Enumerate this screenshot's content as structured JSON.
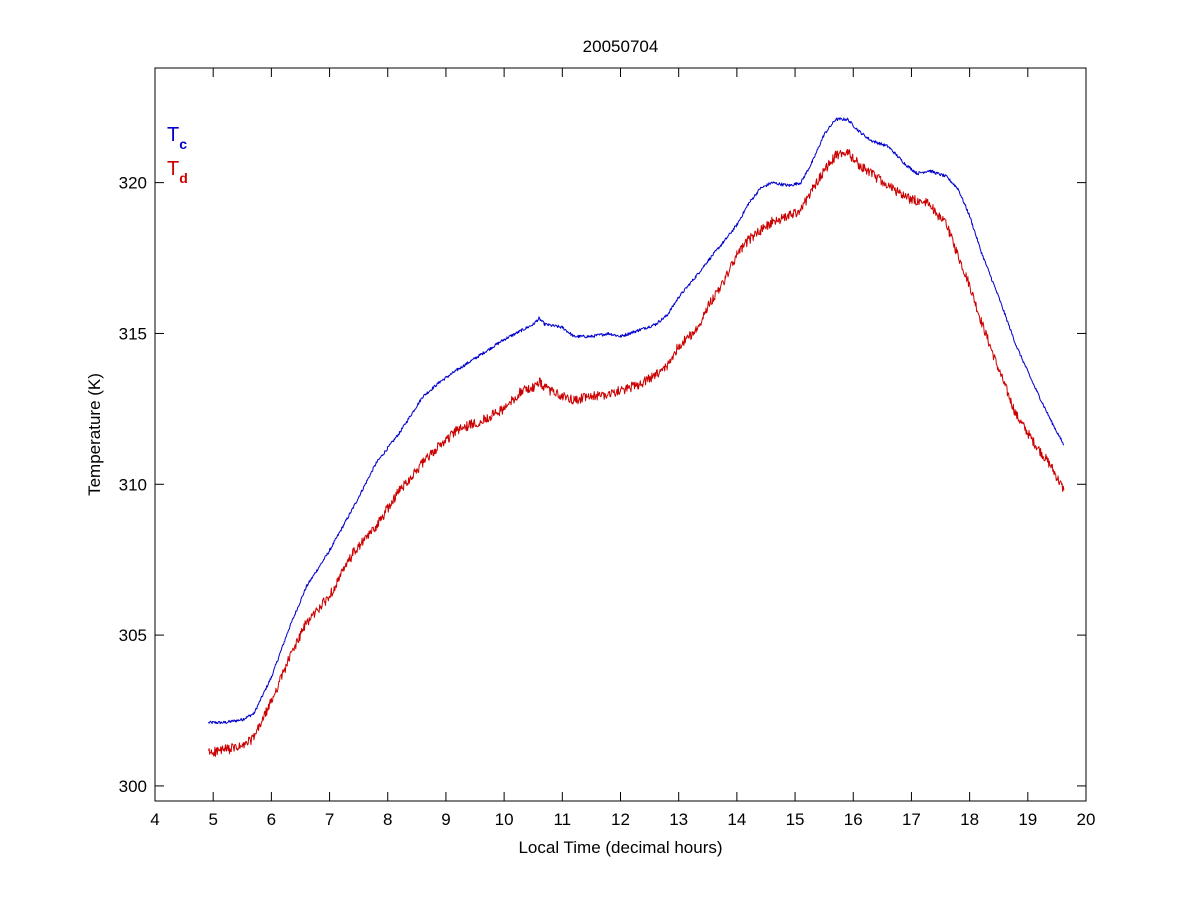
{
  "chart_data": {
    "type": "line",
    "title": "20050704",
    "xlabel": "Local Time (decimal hours)",
    "ylabel": "Temperature (K)",
    "xlim": [
      4,
      20
    ],
    "ylim": [
      299.5,
      323.8
    ],
    "xticks": [
      4,
      5,
      6,
      7,
      8,
      9,
      10,
      11,
      12,
      13,
      14,
      15,
      16,
      17,
      18,
      19,
      20
    ],
    "yticks": [
      300,
      305,
      310,
      315,
      320
    ],
    "grid": false,
    "legend": {
      "placement": "top-left",
      "entries": [
        {
          "base": "T",
          "sub": "c",
          "color": "#0000cc"
        },
        {
          "base": "T",
          "sub": "d",
          "color": "#cc0000"
        }
      ]
    },
    "series": [
      {
        "legend_index": 0,
        "color": "#0000cc",
        "noise": 0.05,
        "x": [
          4.92,
          5.2,
          5.5,
          5.7,
          6.0,
          6.3,
          6.6,
          7.0,
          7.4,
          7.8,
          8.2,
          8.6,
          8.9,
          9.2,
          9.6,
          10.0,
          10.3,
          10.5,
          10.6,
          10.7,
          11.0,
          11.2,
          11.5,
          11.8,
          12.0,
          12.3,
          12.6,
          12.8,
          13.0,
          13.3,
          13.5,
          13.8,
          14.0,
          14.2,
          14.4,
          14.6,
          14.9,
          15.1,
          15.3,
          15.5,
          15.7,
          15.9,
          16.1,
          16.3,
          16.6,
          16.9,
          17.1,
          17.3,
          17.6,
          17.8,
          18.0,
          18.2,
          18.5,
          18.8,
          19.1,
          19.4,
          19.62
        ],
        "y": [
          302.1,
          302.1,
          302.2,
          302.4,
          303.6,
          305.2,
          306.6,
          307.8,
          309.2,
          310.7,
          311.7,
          312.9,
          313.4,
          313.8,
          314.3,
          314.8,
          315.1,
          315.3,
          315.5,
          315.3,
          315.2,
          314.9,
          314.9,
          315.0,
          314.9,
          315.1,
          315.3,
          315.6,
          316.2,
          316.9,
          317.4,
          318.1,
          318.6,
          319.3,
          319.8,
          320.0,
          319.9,
          320.0,
          320.7,
          321.6,
          322.1,
          322.1,
          321.7,
          321.4,
          321.2,
          320.6,
          320.3,
          320.4,
          320.2,
          319.8,
          318.9,
          317.7,
          316.2,
          314.6,
          313.3,
          312.1,
          311.3
        ]
      },
      {
        "legend_index": 1,
        "color": "#cc0000",
        "noise": 0.16,
        "x": [
          4.92,
          5.2,
          5.5,
          5.7,
          6.0,
          6.3,
          6.6,
          7.0,
          7.4,
          7.8,
          8.2,
          8.6,
          8.9,
          9.2,
          9.6,
          10.0,
          10.3,
          10.5,
          10.6,
          10.7,
          11.0,
          11.2,
          11.5,
          11.8,
          12.0,
          12.3,
          12.6,
          12.8,
          13.0,
          13.3,
          13.5,
          13.8,
          14.0,
          14.2,
          14.4,
          14.6,
          14.9,
          15.1,
          15.3,
          15.5,
          15.7,
          15.9,
          16.1,
          16.3,
          16.6,
          16.9,
          17.1,
          17.3,
          17.6,
          17.8,
          18.0,
          18.2,
          18.5,
          18.8,
          19.1,
          19.4,
          19.62
        ],
        "y": [
          301.1,
          301.2,
          301.3,
          301.6,
          302.8,
          304.2,
          305.4,
          306.3,
          307.7,
          308.6,
          309.8,
          310.7,
          311.3,
          311.8,
          312.1,
          312.5,
          313.1,
          313.2,
          313.4,
          313.2,
          312.9,
          312.8,
          312.9,
          313.0,
          313.1,
          313.3,
          313.6,
          313.9,
          314.6,
          315.1,
          315.9,
          316.8,
          317.6,
          318.1,
          318.4,
          318.7,
          318.9,
          319.1,
          319.8,
          320.4,
          320.9,
          321.0,
          320.6,
          320.3,
          319.9,
          319.5,
          319.4,
          319.3,
          318.6,
          317.6,
          316.6,
          315.4,
          313.8,
          312.3,
          311.4,
          310.6,
          309.8
        ]
      }
    ]
  }
}
